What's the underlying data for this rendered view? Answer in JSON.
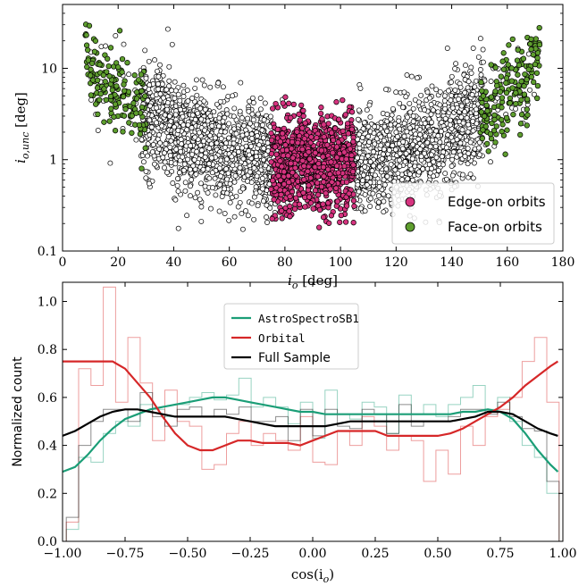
{
  "colors": {
    "edge_on": "#d6337f",
    "face_on": "#5e9e2e",
    "astro": "#1b9e77",
    "orbital": "#d62728",
    "full": "#000000"
  },
  "chart_data": [
    {
      "type": "scatter",
      "xlabel_main": "i",
      "xlabel_sub": "o",
      "xlabel_unit": " [deg]",
      "ylabel_main": "i",
      "ylabel_sub": "o,unc",
      "ylabel_unit": " [deg]",
      "xlim": [
        0,
        180
      ],
      "ylim": [
        0.1,
        50
      ],
      "yscale": "log",
      "xticks": [
        0,
        20,
        40,
        60,
        80,
        100,
        120,
        140,
        160,
        180
      ],
      "yticks": [
        {
          "value": 0.1,
          "label": "0.1"
        },
        {
          "value": 1,
          "label": "1"
        },
        {
          "value": 10,
          "label": "10"
        }
      ],
      "legend_position": "lower-right",
      "series": [
        {
          "name": "Edge-on orbits",
          "marker": "filled-pink",
          "x_range": [
            75,
            105
          ]
        },
        {
          "name": "Face-on orbits",
          "marker": "filled-green",
          "x_range": [
            [
              8,
              30
            ],
            [
              150,
              172
            ]
          ]
        }
      ],
      "background_sample": {
        "marker": "open-circle",
        "x_range": [
          10,
          170
        ]
      }
    },
    {
      "type": "line",
      "xlabel": "cos(i",
      "xlabel_sub": "o",
      "xlabel_close": ")",
      "ylabel": "Normalized count",
      "xlim": [
        -1.0,
        1.0
      ],
      "ylim": [
        0.0,
        1.08
      ],
      "xticks": [
        {
          "value": -1.0,
          "label": "−1.00"
        },
        {
          "value": -0.75,
          "label": "−0.75"
        },
        {
          "value": -0.5,
          "label": "−0.50"
        },
        {
          "value": -0.25,
          "label": "−0.25"
        },
        {
          "value": 0.0,
          "label": "0.00"
        },
        {
          "value": 0.25,
          "label": "0.25"
        },
        {
          "value": 0.5,
          "label": "0.50"
        },
        {
          "value": 0.75,
          "label": "0.75"
        },
        {
          "value": 1.0,
          "label": "1.00"
        }
      ],
      "yticks": [
        {
          "value": 0.0,
          "label": "0.0"
        },
        {
          "value": 0.2,
          "label": "0.2"
        },
        {
          "value": 0.4,
          "label": "0.4"
        },
        {
          "value": 0.6,
          "label": "0.6"
        },
        {
          "value": 0.8,
          "label": "0.8"
        },
        {
          "value": 1.0,
          "label": "1.0"
        }
      ],
      "legend_position": "upper-center",
      "series": [
        {
          "name": "AstroSpectroSB1",
          "color_key": "astro",
          "x": [
            -1.0,
            -0.95,
            -0.9,
            -0.85,
            -0.8,
            -0.75,
            -0.7,
            -0.65,
            -0.6,
            -0.55,
            -0.5,
            -0.45,
            -0.4,
            -0.35,
            -0.3,
            -0.25,
            -0.2,
            -0.15,
            -0.1,
            -0.05,
            0.0,
            0.05,
            0.1,
            0.15,
            0.2,
            0.25,
            0.3,
            0.35,
            0.4,
            0.45,
            0.5,
            0.55,
            0.6,
            0.65,
            0.7,
            0.75,
            0.8,
            0.85,
            0.9,
            0.95,
            0.98
          ],
          "smooth": [
            0.29,
            0.31,
            0.36,
            0.42,
            0.47,
            0.51,
            0.53,
            0.55,
            0.56,
            0.57,
            0.58,
            0.59,
            0.6,
            0.6,
            0.59,
            0.58,
            0.57,
            0.56,
            0.55,
            0.54,
            0.54,
            0.53,
            0.53,
            0.53,
            0.53,
            0.53,
            0.53,
            0.53,
            0.53,
            0.53,
            0.53,
            0.53,
            0.54,
            0.54,
            0.55,
            0.54,
            0.51,
            0.45,
            0.38,
            0.32,
            0.29
          ],
          "hist": [
            0.05,
            0.35,
            0.33,
            0.45,
            0.5,
            0.48,
            0.57,
            0.55,
            0.52,
            0.57,
            0.6,
            0.62,
            0.59,
            0.61,
            0.68,
            0.56,
            0.6,
            0.56,
            0.49,
            0.58,
            0.43,
            0.63,
            0.53,
            0.51,
            0.58,
            0.56,
            0.45,
            0.61,
            0.53,
            0.57,
            0.52,
            0.57,
            0.6,
            0.65,
            0.55,
            0.6,
            0.5,
            0.4,
            0.35,
            0.2
          ]
        },
        {
          "name": "Orbital",
          "color_key": "orbital",
          "x": [
            -1.0,
            -0.95,
            -0.9,
            -0.85,
            -0.8,
            -0.75,
            -0.7,
            -0.65,
            -0.6,
            -0.55,
            -0.5,
            -0.45,
            -0.4,
            -0.35,
            -0.3,
            -0.25,
            -0.2,
            -0.15,
            -0.1,
            -0.05,
            0.0,
            0.05,
            0.1,
            0.15,
            0.2,
            0.25,
            0.3,
            0.35,
            0.4,
            0.45,
            0.5,
            0.55,
            0.6,
            0.65,
            0.7,
            0.75,
            0.8,
            0.85,
            0.9,
            0.95,
            0.98
          ],
          "smooth": [
            0.75,
            0.75,
            0.75,
            0.75,
            0.75,
            0.72,
            0.66,
            0.6,
            0.52,
            0.45,
            0.4,
            0.38,
            0.38,
            0.4,
            0.42,
            0.42,
            0.41,
            0.41,
            0.41,
            0.4,
            0.42,
            0.44,
            0.46,
            0.46,
            0.46,
            0.46,
            0.44,
            0.44,
            0.44,
            0.44,
            0.44,
            0.45,
            0.47,
            0.5,
            0.53,
            0.56,
            0.6,
            0.65,
            0.69,
            0.73,
            0.75
          ],
          "hist": [
            0.08,
            0.72,
            0.65,
            1.06,
            0.58,
            0.85,
            0.66,
            0.42,
            0.63,
            0.5,
            0.48,
            0.3,
            0.32,
            0.45,
            0.5,
            0.4,
            0.45,
            0.42,
            0.38,
            0.52,
            0.33,
            0.32,
            0.46,
            0.4,
            0.52,
            0.48,
            0.38,
            0.44,
            0.42,
            0.25,
            0.38,
            0.28,
            0.48,
            0.4,
            0.52,
            0.55,
            0.6,
            0.75,
            0.85,
            0.58
          ]
        },
        {
          "name": "Full Sample",
          "color_key": "full",
          "x": [
            -1.0,
            -0.95,
            -0.9,
            -0.85,
            -0.8,
            -0.75,
            -0.7,
            -0.65,
            -0.6,
            -0.55,
            -0.5,
            -0.45,
            -0.4,
            -0.35,
            -0.3,
            -0.25,
            -0.2,
            -0.15,
            -0.1,
            -0.05,
            0.0,
            0.05,
            0.1,
            0.15,
            0.2,
            0.25,
            0.3,
            0.35,
            0.4,
            0.45,
            0.5,
            0.55,
            0.6,
            0.65,
            0.7,
            0.75,
            0.8,
            0.85,
            0.9,
            0.95,
            0.98
          ],
          "smooth": [
            0.44,
            0.46,
            0.49,
            0.52,
            0.54,
            0.55,
            0.55,
            0.54,
            0.53,
            0.52,
            0.52,
            0.52,
            0.52,
            0.52,
            0.51,
            0.5,
            0.49,
            0.48,
            0.48,
            0.48,
            0.48,
            0.48,
            0.49,
            0.5,
            0.5,
            0.5,
            0.5,
            0.5,
            0.5,
            0.5,
            0.5,
            0.5,
            0.51,
            0.52,
            0.54,
            0.54,
            0.53,
            0.5,
            0.47,
            0.45,
            0.44
          ],
          "hist": [
            0.1,
            0.4,
            0.5,
            0.55,
            0.55,
            0.5,
            0.62,
            0.52,
            0.48,
            0.55,
            0.56,
            0.52,
            0.55,
            0.53,
            0.56,
            0.5,
            0.5,
            0.52,
            0.42,
            0.55,
            0.44,
            0.55,
            0.48,
            0.47,
            0.55,
            0.53,
            0.45,
            0.57,
            0.48,
            0.5,
            0.5,
            0.52,
            0.55,
            0.55,
            0.53,
            0.58,
            0.52,
            0.47,
            0.46,
            0.25
          ]
        }
      ]
    }
  ]
}
